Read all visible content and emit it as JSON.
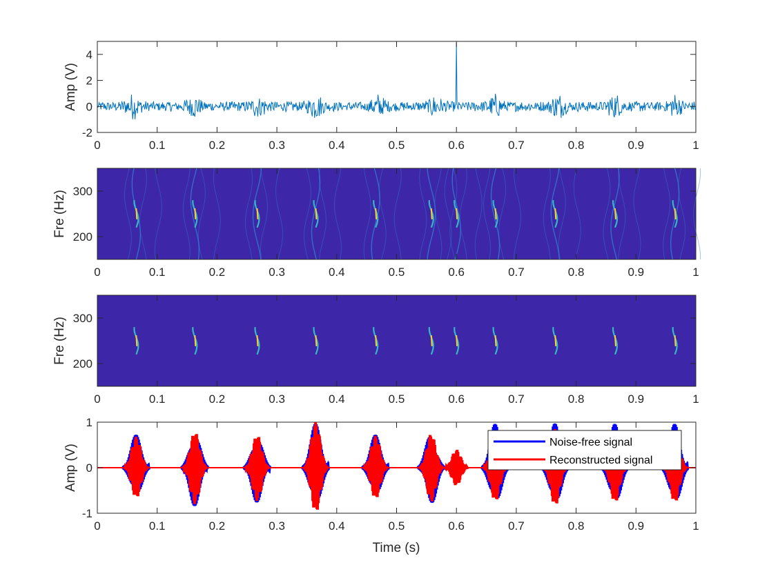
{
  "figure": {
    "background": "#ffffff",
    "axis_color": "#262626",
    "signal_color": "#0072BD",
    "spectrogram_background": "#3e26a8",
    "spectrogram_colormap": "parula"
  },
  "chart_data": [
    {
      "type": "line",
      "title": "",
      "xlabel": "",
      "ylabel": "Amp (V)",
      "xlim": [
        0,
        1
      ],
      "ylim": [
        -2,
        5
      ],
      "xticks": [
        "0",
        "0.1",
        "0.2",
        "0.3",
        "0.4",
        "0.5",
        "0.6",
        "0.7",
        "0.8",
        "0.9",
        "1"
      ],
      "yticks": [
        "-2",
        "0",
        "2",
        "4"
      ],
      "grid": false,
      "series": [
        {
          "color": "#0072BD",
          "description_points": "noisy signal with random fluctuations roughly within ±1.2 V, impulse at t=0.6",
          "x": [
            0,
            0.06,
            0.16,
            0.27,
            0.365,
            0.47,
            0.57,
            0.6,
            0.665,
            0.77,
            0.865,
            0.965,
            1.0
          ],
          "y": [
            0.2,
            1.0,
            1.1,
            0.8,
            -1.3,
            0.9,
            -0.9,
            4.9,
            1.2,
            1.0,
            1.1,
            1.3,
            0.1
          ]
        }
      ]
    },
    {
      "type": "heatmap",
      "title": "",
      "xlabel": "",
      "ylabel": "Fre (Hz)",
      "xlim": [
        0,
        1
      ],
      "ylim": [
        150,
        350
      ],
      "xticks": [
        "0",
        "0.1",
        "0.2",
        "0.3",
        "0.4",
        "0.5",
        "0.6",
        "0.7",
        "0.8",
        "0.9",
        "1"
      ],
      "yticks": [
        "200",
        "300"
      ],
      "colormap": "parula",
      "ridge_centers_s": [
        0.065,
        0.163,
        0.267,
        0.365,
        0.465,
        0.558,
        0.6,
        0.665,
        0.765,
        0.865,
        0.965
      ]
    },
    {
      "type": "heatmap",
      "title": "",
      "xlabel": "",
      "ylabel": "Fre (Hz)",
      "xlim": [
        0,
        1
      ],
      "ylim": [
        150,
        350
      ],
      "xticks": [
        "0",
        "0.1",
        "0.2",
        "0.3",
        "0.4",
        "0.5",
        "0.6",
        "0.7",
        "0.8",
        "0.9",
        "1"
      ],
      "yticks": [
        "200",
        "300"
      ],
      "colormap": "parula",
      "ridge_centers_s": [
        0.065,
        0.163,
        0.267,
        0.365,
        0.465,
        0.558,
        0.6,
        0.665,
        0.765,
        0.865,
        0.965
      ]
    },
    {
      "type": "line",
      "title": "",
      "xlabel": "Time (s)",
      "ylabel": "Amp (V)",
      "xlim": [
        0,
        1
      ],
      "ylim": [
        -1,
        1
      ],
      "xticks": [
        "0",
        "0.1",
        "0.2",
        "0.3",
        "0.4",
        "0.5",
        "0.6",
        "0.7",
        "0.8",
        "0.9",
        "1"
      ],
      "yticks": [
        "-1",
        "0",
        "1"
      ],
      "legend_position": "top-right",
      "series": [
        {
          "name": "Noise-free signal",
          "color": "#0000ff",
          "burst_centers_s": [
            0.065,
            0.163,
            0.267,
            0.365,
            0.465,
            0.558,
            0.665,
            0.765,
            0.865,
            0.965
          ],
          "burst_peaks_v": [
            0.73,
            0.85,
            0.77,
            0.98,
            0.73,
            0.82,
            0.97,
            0.98,
            0.97,
            0.97
          ]
        },
        {
          "name": "Reconstructed signal",
          "color": "#ff0000",
          "burst_centers_s": [
            0.065,
            0.163,
            0.267,
            0.365,
            0.465,
            0.558,
            0.6,
            0.665,
            0.765,
            0.865,
            0.965
          ],
          "burst_peaks_v": [
            0.68,
            0.8,
            0.73,
            1.0,
            0.7,
            0.75,
            0.4,
            0.75,
            0.85,
            0.78,
            0.78
          ]
        }
      ]
    }
  ]
}
